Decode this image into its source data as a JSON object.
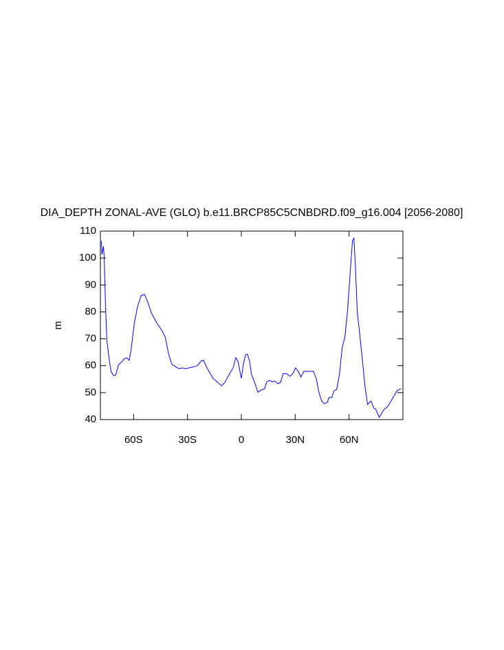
{
  "chart_data": {
    "type": "line",
    "title": "DIA_DEPTH ZONAL-AVE (GLO) b.e11.BRCP85C5CNBDRD.f09_g16.004 [2056-2080]",
    "y_label": "m",
    "xlim": [
      -78.5,
      90
    ],
    "ylim": [
      40,
      110
    ],
    "xticks": [
      {
        "value": -60,
        "label": "60S"
      },
      {
        "value": -30,
        "label": "30S"
      },
      0,
      {
        "value": 30,
        "label": "30N"
      },
      {
        "value": 60,
        "label": "60N"
      }
    ],
    "yticks": [
      40,
      50,
      60,
      70,
      80,
      90,
      100,
      110
    ],
    "series": [
      {
        "color": "#0000ff",
        "x": [
          -78,
          -77.6,
          -76.8,
          -76.4,
          -75.7,
          -74.9,
          -73.7,
          -72.6,
          -71.1,
          -69.9,
          -68.4,
          -66.9,
          -65.3,
          -63.8,
          -62.5,
          -61.5,
          -59.6,
          -57.7,
          -55.8,
          -53.9,
          -52,
          -50.1,
          -47,
          -43.9,
          -42.4,
          -40.5,
          -38.6,
          -36.7,
          -34.8,
          -32.9,
          -31,
          -27.1,
          -24.5,
          -22.5,
          -21,
          -19.5,
          -17.6,
          -15.7,
          -13.4,
          -11.1,
          -9.2,
          -6.9,
          -4.6,
          -3.1,
          -1.9,
          -0.8,
          0,
          1.1,
          2.3,
          3.4,
          4.6,
          5.7,
          7.3,
          9.2,
          11.1,
          13,
          14.1,
          15.7,
          17.2,
          18.7,
          20.3,
          21.8,
          23.3,
          25.2,
          27.1,
          28.7,
          30.2,
          31.7,
          33.2,
          34.8,
          37.1,
          40.1,
          41.7,
          43.2,
          44.7,
          46.2,
          47.8,
          48.9,
          50.4,
          51.6,
          53.1,
          54.6,
          56.2,
          57.7,
          59.2,
          60.8,
          61.9,
          62.7,
          63.4,
          64.6,
          65.7,
          67.3,
          68.8,
          70.3,
          72.2,
          73.8,
          74.9,
          76.8,
          79.1,
          81.8,
          84.5,
          86.7,
          89
        ],
        "values": [
          106.4,
          101.3,
          104.4,
          100.8,
          83.4,
          69.4,
          63,
          57.9,
          56.3,
          56.6,
          60.4,
          61.2,
          62.5,
          63,
          62,
          65.5,
          75.8,
          82.2,
          86,
          86.5,
          83.4,
          79.6,
          75.8,
          72.7,
          70.7,
          64.3,
          60.4,
          59.7,
          58.9,
          59.2,
          58.9,
          59.5,
          60,
          61.7,
          62,
          59.7,
          57.4,
          55.3,
          54,
          52.5,
          53.8,
          56.6,
          59.2,
          63,
          61.7,
          57.9,
          55.3,
          60.4,
          64,
          64.3,
          61.7,
          56.6,
          54,
          50.2,
          51,
          51.5,
          54,
          54.6,
          54,
          54.3,
          53.3,
          53.8,
          57.1,
          57.1,
          56.1,
          57.1,
          59.2,
          57.9,
          55.8,
          57.9,
          57.9,
          57.9,
          55.3,
          50.2,
          46.9,
          45.9,
          46.4,
          48.2,
          48.2,
          50.7,
          51.2,
          56.6,
          66.8,
          70.7,
          80.9,
          96.2,
          106.4,
          107.4,
          98.8,
          79.6,
          73.2,
          63,
          52.8,
          45.6,
          46.9,
          44.3,
          43.8,
          40.8,
          43.4,
          45.1,
          48.2,
          50.7,
          51.5
        ]
      }
    ]
  }
}
